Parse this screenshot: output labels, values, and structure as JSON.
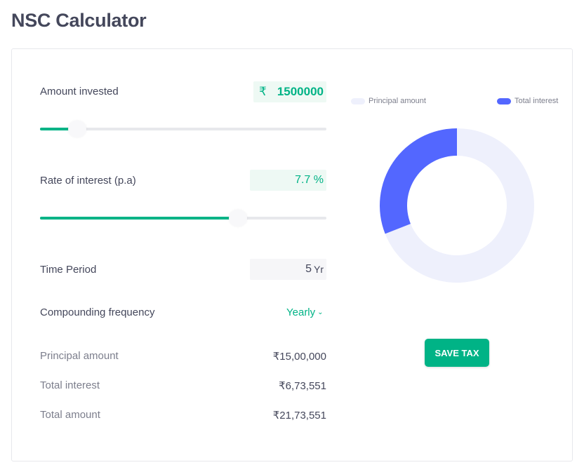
{
  "page": {
    "title": "NSC Calculator"
  },
  "inputs": {
    "amount": {
      "label": "Amount invested",
      "currency_symbol": "₹",
      "value": "1500000",
      "slider_fraction": 0.13
    },
    "rate": {
      "label": "Rate of interest (p.a)",
      "value": "7.7 %",
      "slider_fraction": 0.69
    },
    "period": {
      "label": "Time Period",
      "value": "5",
      "unit": "Yr"
    },
    "frequency": {
      "label": "Compounding frequency",
      "value": "Yearly"
    }
  },
  "summary": [
    {
      "label": "Principal amount",
      "value": "₹15,00,000"
    },
    {
      "label": "Total interest",
      "value": "₹6,73,551"
    },
    {
      "label": "Total amount",
      "value": "₹21,73,551"
    }
  ],
  "legend": {
    "principal": {
      "label": "Principal amount",
      "color": "#eef0fc"
    },
    "interest": {
      "label": "Total interest",
      "color": "#5367ff"
    }
  },
  "chart_data": {
    "type": "pie",
    "variant": "donut",
    "categories": [
      "Principal amount",
      "Total interest"
    ],
    "values": [
      1500000,
      673551
    ],
    "colors": [
      "#eef0fc",
      "#5367ff"
    ],
    "legend_position": "top"
  },
  "actions": {
    "save_tax": "SAVE TAX"
  },
  "colors": {
    "accent": "#00b386",
    "accent_bg": "#eef9f4",
    "text": "#44475b"
  }
}
